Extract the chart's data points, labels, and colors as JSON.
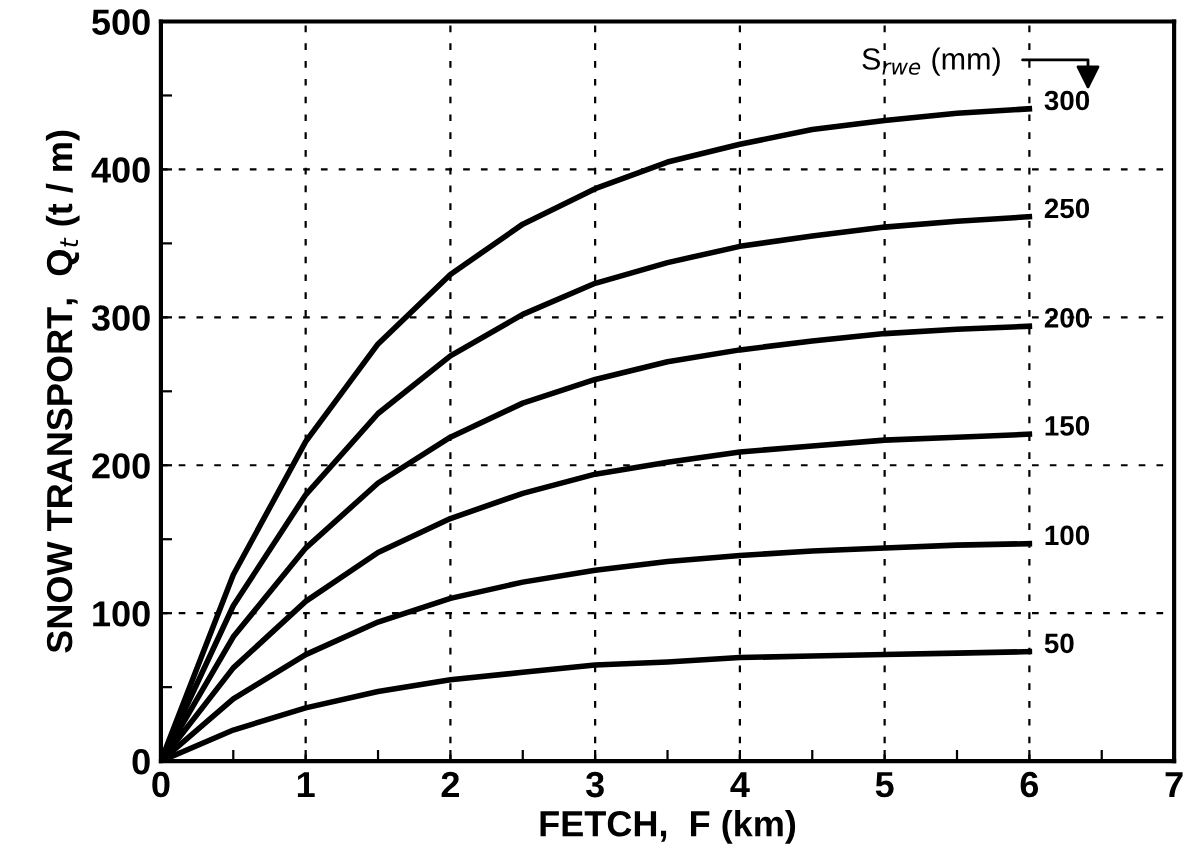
{
  "chart_data": {
    "type": "line",
    "xlabel": "FETCH,  F (km)",
    "ylabel": "SNOW TRANSPORT,  Q$_{t}$ (t / m)",
    "legend_title": "S$_{rwe}$ (mm)",
    "x": [
      0,
      0.5,
      1,
      1.5,
      2,
      2.5,
      3,
      3.5,
      4,
      4.5,
      5,
      5.5,
      6
    ],
    "series": [
      {
        "name": "300",
        "color": "#000000",
        "values": [
          0,
          126,
          216,
          282,
          329,
          363,
          387,
          405,
          417,
          427,
          433,
          438,
          441
        ]
      },
      {
        "name": "250",
        "color": "#000000",
        "values": [
          0,
          105,
          180,
          235,
          274,
          302,
          323,
          337,
          348,
          355,
          361,
          365,
          368
        ]
      },
      {
        "name": "200",
        "color": "#000000",
        "values": [
          0,
          84,
          144,
          188,
          219,
          242,
          258,
          270,
          278,
          284,
          289,
          292,
          294
        ]
      },
      {
        "name": "150",
        "color": "#000000",
        "values": [
          0,
          63,
          108,
          141,
          164,
          181,
          194,
          202,
          209,
          213,
          217,
          219,
          221
        ]
      },
      {
        "name": "100",
        "color": "#000000",
        "values": [
          0,
          42,
          72,
          94,
          110,
          121,
          129,
          135,
          139,
          142,
          144,
          146,
          147
        ]
      },
      {
        "name": "50",
        "color": "#000000",
        "values": [
          0,
          21,
          36,
          47,
          55,
          60,
          65,
          67,
          70,
          71,
          72,
          73,
          74
        ]
      }
    ],
    "xlim": [
      0,
      7
    ],
    "ylim": [
      0,
      500
    ],
    "xticks": [
      0,
      {
        "value": 0.5,
        "label": null
      },
      1,
      {
        "value": 1.5,
        "label": null
      },
      2,
      {
        "value": 2.5,
        "label": null
      },
      3,
      {
        "value": 3.5,
        "label": null
      },
      4,
      {
        "value": 4.5,
        "label": null
      },
      5,
      {
        "value": 5.5,
        "label": null
      },
      6,
      {
        "value": 6.5,
        "label": null
      },
      7
    ],
    "yticks": [
      0,
      {
        "value": 50,
        "label": null
      },
      100,
      {
        "value": 150,
        "label": null
      },
      200,
      {
        "value": 250,
        "label": null
      },
      300,
      {
        "value": 350,
        "label": null
      },
      400,
      {
        "value": 450,
        "label": null
      },
      500
    ],
    "grid": true,
    "line_style": "solid",
    "marker": "none"
  }
}
